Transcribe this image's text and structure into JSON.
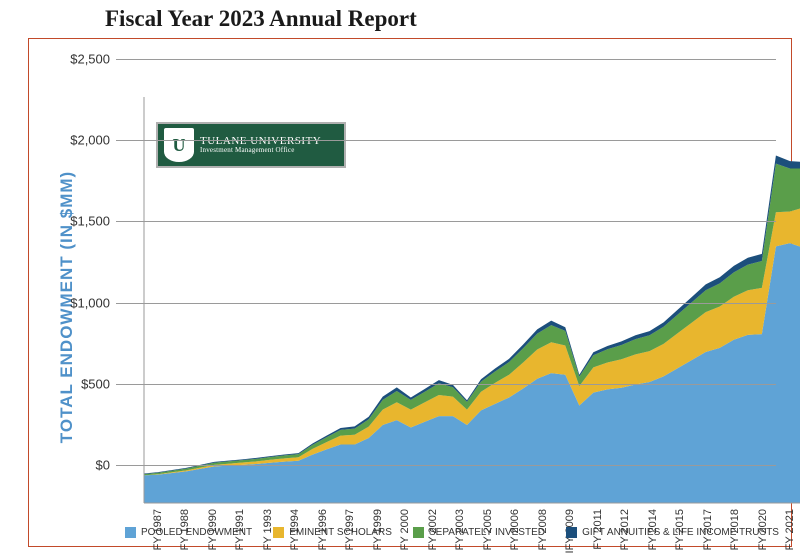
{
  "title": "Fiscal Year 2023 Annual Report",
  "frame_border_color": "#c24a2a",
  "y_axis_title": "TOTAL ENDOWMENT (IN $MM)",
  "y_axis_title_color": "#4f91c9",
  "logo": {
    "line1": "TULANE UNIVERSITY",
    "line2": "Investment Management Office",
    "bg_color": "#205b41",
    "shield_letter": "U",
    "shield_letter_color": "#205b41"
  },
  "chart": {
    "type": "stacked-area",
    "plot_bg": "#ffffff",
    "grid_color": "#9a9a9a",
    "axis_line_color": "#9a9a9a",
    "ylim": [
      0,
      2500
    ],
    "ytick_step": 500,
    "ytick_labels": [
      "$0",
      "$500",
      "$1,000",
      "$1,500",
      "$2,000",
      "$2,500"
    ],
    "tick_fontsize": 13,
    "tick_color": "#333333",
    "categories": [
      "FY 1987",
      "FY 1988",
      "FY 1990",
      "FY 1991",
      "FY 1993",
      "FY 1994",
      "FY 1996",
      "FY 1997",
      "FY 1999",
      "FY 2000",
      "FY 2002",
      "FY 2003",
      "FY 2005",
      "FY 2006",
      "FY 2008",
      "IFY 2009",
      "FY 2011",
      "FY 2012",
      "FY 2014",
      "FY 2015",
      "FY 2017",
      "FY 2018",
      "FY 2020",
      "FY 2021"
    ],
    "x_label_rotation": -90,
    "x_label_fontsize": 11,
    "series": [
      {
        "name": "POOLED ENDOWMENT",
        "color": "#5fa3d6",
        "values": [
          170,
          175,
          185,
          195,
          210,
          225,
          230,
          235,
          240,
          248,
          255,
          260,
          298,
          330,
          360,
          360,
          400,
          480,
          510,
          465,
          500,
          535,
          535,
          480,
          570,
          610,
          650,
          705,
          765,
          800,
          790,
          600,
          680,
          700,
          710,
          730,
          745,
          780,
          830,
          880,
          930,
          955,
          1005,
          1035,
          1040,
          1580,
          1600,
          1570
        ]
      },
      {
        "name": "EMINENT SCHOLARS",
        "color": "#e8b62e",
        "values": [
          0,
          2,
          4,
          6,
          8,
          10,
          12,
          14,
          16,
          18,
          20,
          22,
          35,
          45,
          55,
          60,
          70,
          95,
          110,
          110,
          120,
          130,
          120,
          95,
          115,
          130,
          140,
          160,
          180,
          190,
          180,
          120,
          155,
          165,
          175,
          185,
          190,
          200,
          215,
          230,
          245,
          255,
          265,
          275,
          285,
          210,
          195,
          250
        ]
      },
      {
        "name": "SEPARATELY INVESTED",
        "color": "#5a9e4a",
        "values": [
          8,
          9,
          10,
          11,
          12,
          13,
          14,
          15,
          16,
          17,
          18,
          19,
          25,
          30,
          35,
          38,
          45,
          60,
          70,
          60,
          65,
          72,
          58,
          48,
          62,
          70,
          78,
          88,
          98,
          105,
          90,
          58,
          75,
          82,
          88,
          94,
          98,
          105,
          115,
          125,
          135,
          142,
          150,
          158,
          165,
          300,
          265,
          240
        ]
      },
      {
        "name": "GIFT ANNUITIES & LIFE INCOME TRUSTS",
        "color": "#1c4f7c",
        "values": [
          4,
          4,
          4,
          4,
          5,
          5,
          5,
          5,
          6,
          6,
          6,
          6,
          8,
          10,
          12,
          14,
          16,
          20,
          22,
          15,
          18,
          20,
          14,
          10,
          15,
          18,
          20,
          23,
          26,
          28,
          22,
          12,
          18,
          20,
          22,
          24,
          25,
          27,
          30,
          33,
          36,
          38,
          40,
          42,
          44,
          50,
          45,
          40
        ]
      }
    ],
    "legend_fontsize": 10
  }
}
